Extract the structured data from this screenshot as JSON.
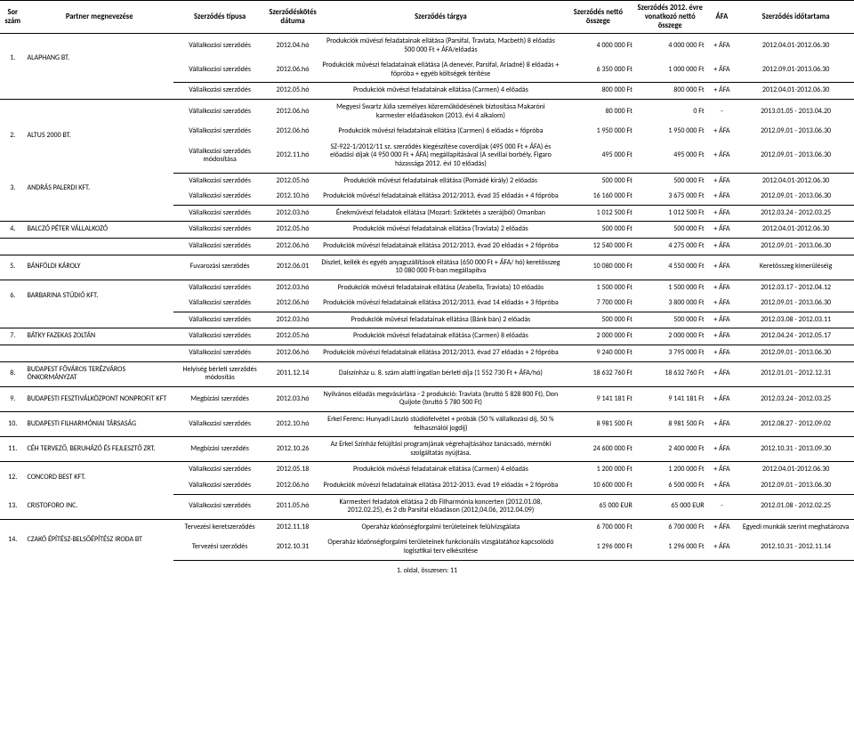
{
  "headers": {
    "sor": "Sor\nszám",
    "partner": "Partner megnevezése",
    "tipus": "Szerződés típusa",
    "datum": "Szerződéskötés\ndátuma",
    "targy": "Szerződés tárgya",
    "netto": "Szerződés nettó\nösszege",
    "evre": "Szerződés 2012.\névre vonatkozó\nnettó összege",
    "afa": "ÁFA",
    "ido": "Szerződés időtartama"
  },
  "footer": "1. oldal, összesen: 11",
  "groups": [
    {
      "sor": "1.",
      "partner": "ALAPHANG BT.",
      "rows": [
        {
          "tipus": "Vállalkozási szerződés",
          "datum": "2012.04.hó",
          "targy": "Produkciók művészi feladatainak ellátása (Parsifal, Traviata, Macbeth) 8 előadás 500 000 Ft + ÁFA/előadás",
          "netto": "4 000 000 Ft",
          "evre": "4 000 000 Ft",
          "afa": "+ ÁFA",
          "ido": "2012.04.01-2012.06.30"
        },
        {
          "tipus": "Vállalkozási szerződés",
          "datum": "2012.06.hó",
          "targy": "Produkciók művészi feladatainak ellátása (A denevér, Parsifal, Ariadné) 8 előadás + főpróba + egyéb költségek térítése",
          "netto": "6 350 000 Ft",
          "evre": "1 000 000 Ft",
          "afa": "+ ÁFA",
          "ido": "2012.09.01-2013.06.30"
        }
      ]
    },
    {
      "rows": [
        {
          "tipus": "Vállalkozási szerződés",
          "datum": "2012.05.hó",
          "targy": "Produkciók művészi feladatainak ellátása (Carmen) 4 előadás",
          "netto": "800 000 Ft",
          "evre": "800 000 Ft",
          "afa": "+ ÁFA",
          "ido": "2012.04.01-2012.06.30"
        }
      ]
    },
    {
      "sor": "2.",
      "partner": "ALTUS 2000 BT.",
      "rows": [
        {
          "tipus": "Vállalkozási szerződés",
          "datum": "2012.06.hó",
          "targy": "Megyesi Swartz Júlia személyes közreműködésének biztosítása Makaróni karmester előadásokon (2013. évi 4 alkalom)",
          "netto": "80 000 Ft",
          "evre": "0 Ft",
          "afa": "-",
          "ido": "2013.01.05 - 2013.04.20"
        },
        {
          "tipus": "Vállalkozási szerződés",
          "datum": "2012.06.hó",
          "targy": "Produkciók művészi feladatainak ellátása (Carmen) 6 előadás + főpróba",
          "netto": "1 950 000 Ft",
          "evre": "1 950 000 Ft",
          "afa": "+ ÁFA",
          "ido": "2012.09.01 - 2013.06.30"
        },
        {
          "tipus": "Vállalkozási szerződés módosítása",
          "datum": "2012.11.hó",
          "targy": "SZ-922-1/2012/11 sz. szerződés kiegészítése coverdíjak (495 000 Ft + ÁFA) és előadási díjak (4 950 000 Ft + ÁFA) megállapításával (A sevillai borbély, Figaro házassága 2012. évi 10 előadás)",
          "netto": "495 000 Ft",
          "evre": "495 000 Ft",
          "afa": "+ ÁFA",
          "ido": "2012.09.01 - 2013.06.30"
        }
      ]
    },
    {
      "sor": "3.",
      "partner": "ANDRÁS PALERDI KFT.",
      "rowspan": 2,
      "thin": true,
      "rows": [
        {
          "tipus": "Vállalkozási szerződés",
          "datum": "2012.05.hó",
          "targy": "Produkciók művészi feladatainak ellátása (Pomádé király) 2 előadás",
          "netto": "500 000 Ft",
          "evre": "500 000 Ft",
          "afa": "+ ÁFA",
          "ido": "2012.04.01-2012.06.30"
        },
        {
          "tipus": "Vállalkozási szerződés",
          "datum": "2012.10.hó",
          "targy": "Produkciók művészi feladatainak ellátása 2012/2013. évad 35 előadás + 4 főpróba",
          "netto": "16 160 000 Ft",
          "evre": "3 675 000 Ft",
          "afa": "+ ÁFA",
          "ido": "2012.09.01 - 2013.06.30"
        }
      ]
    },
    {
      "rows": [
        {
          "tipus": "Vállalkozási szerződés",
          "datum": "2012.03.hó",
          "targy": "Énekművészi feladatok ellátása (Mozart: Szöktetés a szerájból) Omanban",
          "netto": "1 012 500 Ft",
          "evre": "1 012 500 Ft",
          "afa": "+ ÁFA",
          "ido": "2012.03.24 - 2012.03.25"
        }
      ],
      "thin": true
    },
    {
      "sor": "4.",
      "partner": "BALCZÓ PÉTER VÁLLALKOZÓ",
      "rowspan": 1,
      "thin": true,
      "rows": [
        {
          "tipus": "Vállalkozási szerződés",
          "datum": "2012.05.hó",
          "targy": "Produkciók művészi feladatainak ellátása (Traviata) 2 előadás",
          "netto": "500 000 Ft",
          "evre": "500 000 Ft",
          "afa": "+ ÁFA",
          "ido": "2012.04.01-2012.06.30"
        }
      ]
    },
    {
      "thin": true,
      "rows": [
        {
          "tipus": "Vállalkozási szerződés",
          "datum": "2012.06.hó",
          "targy": "Produkciók művészi feladatainak ellátása 2012/2013. évad 20 előadás + 2 főpróba",
          "netto": "12 540 000 Ft",
          "evre": "4 275 000 Ft",
          "afa": "+ ÁFA",
          "ido": "2012.09.01 - 2013.06.30"
        }
      ]
    },
    {
      "sor": "5.",
      "partner": "BÁNFÖLDI KÁROLY",
      "thin": true,
      "rows": [
        {
          "tipus": "Fuvarozási szerződés",
          "datum": "2012.06.01",
          "targy": "Díszlet, kellék és egyéb anyagszállítások ellátása (650 000 Ft + ÁFA/ hó) keretösszeg 10 080 000 Ft-ban megállapítva",
          "netto": "10 080 000 Ft",
          "evre": "4 550 000 Ft",
          "afa": "+ ÁFA",
          "ido": "Keretösszeg kimerüléséig"
        }
      ]
    },
    {
      "sor": "6.",
      "partner": "BARBARINA STÚDIÓ KFT.",
      "rowspan": 2,
      "thin": true,
      "rows": [
        {
          "tipus": "Vállalkozási szerződés",
          "datum": "2012.03.hó",
          "targy": "Produkciók művészi feladatainak ellátása (Arabella, Traviata) 10 előadás",
          "netto": "1 500 000 Ft",
          "evre": "1 500 000 Ft",
          "afa": "+ ÁFA",
          "ido": "2012.03.17 - 2012.04.12"
        },
        {
          "tipus": "Vállalkozási szerződés",
          "datum": "2012.06.hó",
          "targy": "Produkciók művészi feladatainak ellátása 2012/2013. évad 14 előadás + 3 főpróba",
          "netto": "7 700 000 Ft",
          "evre": "3 800 000 Ft",
          "afa": "+ ÁFA",
          "ido": "2012.09.01 - 2013.06.30"
        }
      ]
    },
    {
      "thin": true,
      "rows": [
        {
          "tipus": "Vállalkozási szerződés",
          "datum": "2012.03.hó",
          "targy": "Produkciók művészi feladatainak ellátása (Bánk bán) 2 előadás",
          "netto": "500 000 Ft",
          "evre": "500 000 Ft",
          "afa": "+ ÁFA",
          "ido": "2012.03.08 - 2012.03.11"
        }
      ]
    },
    {
      "sor": "7.",
      "partner": "BÁTKY FAZEKAS ZOLTÁN",
      "rowspan": 1,
      "thin": true,
      "rows": [
        {
          "tipus": "Vállalkozási szerződés",
          "datum": "2012.05.hó",
          "targy": "Produkciók művészi feladatainak ellátása (Carmen) 8 előadás",
          "netto": "2 000 000 Ft",
          "evre": "2 000 000 Ft",
          "afa": "+ ÁFA",
          "ido": "2012.04.24 - 2012.05.17"
        }
      ]
    },
    {
      "thin": true,
      "rows": [
        {
          "tipus": "Vállalkozási szerződés",
          "datum": "2012.06.hó",
          "targy": "Produkciók művészi feladatainak ellátása 2012/2013. évad 27 előadás + 2 főpróba",
          "netto": "9 240 000 Ft",
          "evre": "3 795 000 Ft",
          "afa": "+ ÁFA",
          "ido": "2012.09.01 - 2013.06.30"
        }
      ]
    },
    {
      "sor": "8.",
      "partner": "BUDAPEST FŐVÁROS TERÉZVÁROS ÖNKORMÁNYZAT",
      "thin": true,
      "rows": [
        {
          "tipus": "Helyiség bérleti szerződés módosítás",
          "datum": "2011.12.14",
          "targy": "Dalszínház u. 8. szám alatti ingatlan bérleti díja (1 552 730 Ft + ÁFA/hó)",
          "netto": "18 632 760 Ft",
          "evre": "18 632 760 Ft",
          "afa": "+ ÁFA",
          "ido": "2012.01.01 - 2012.12.31"
        }
      ]
    },
    {
      "sor": "9.",
      "partner": "BUDAPESTI FESZTIVÁLKÖZPONT NONPROFIT KFT",
      "thin": true,
      "rows": [
        {
          "tipus": "Megbízási szerződés",
          "datum": "2012.03.hó",
          "targy": "Nyilvános előadás megvásárlása - 2 produkció: Traviata (bruttó 5 828 800 Ft), Don Quijote (bruttó 5 780 500 Ft)",
          "netto": "9 141 181 Ft",
          "evre": "9 141 181 Ft",
          "afa": "+ ÁFA",
          "ido": "2012.03.24 - 2012.03.25"
        }
      ]
    },
    {
      "sor": "10.",
      "partner": "BUDAPESTI FILHARMÓNIAI TÁRSASÁG",
      "thin": true,
      "rows": [
        {
          "tipus": "Vállalkozási szerződés",
          "datum": "2012.10.hó",
          "targy": "Erkel Ferenc: Hunyadi László stúdiófelvétel + próbák (50 % vállalkozási díj, 50 % felhasználói jogdíj)",
          "netto": "8 981 500 Ft",
          "evre": "8 981 500 Ft",
          "afa": "+ ÁFA",
          "ido": "2012.08.27 - 2012.09.02"
        }
      ]
    },
    {
      "sor": "11.",
      "partner": "CÉH TERVEZŐ, BERUHÁZÓ ÉS FEJLESZTŐ ZRT.",
      "thin": true,
      "rows": [
        {
          "tipus": "Megbízási szerződés",
          "datum": "2012.10.26",
          "targy": "Az Erkel Színház felújítási programjának végrehajtásához tanácsadó, mérnöki szolgáltatás nyújtása.",
          "netto": "24 600 000 Ft",
          "evre": "2 400 000 Ft",
          "afa": "+ ÁFA",
          "ido": "2012.10.31 - 2013.09.30"
        }
      ]
    },
    {
      "sor": "12.",
      "partner": "CONCORD BEST KFT.",
      "rowspan": 2,
      "thin": true,
      "rows": [
        {
          "tipus": "Vállalkozási szerződés",
          "datum": "2012.05.18",
          "targy": "Produkciók művészi feladatainak ellátása (Carmen) 4 előadás",
          "netto": "1 200 000 Ft",
          "evre": "1 200 000 Ft",
          "afa": "+ ÁFA",
          "ido": "2012.04.01-2012.06.30"
        },
        {
          "tipus": "Vállalkozási szerződés",
          "datum": "2012.06.hó",
          "targy": "Produkciók művészi feladatainak ellátása 2012-2013. évad 19 előadás + 2 főpróba",
          "netto": "10 600 000 Ft",
          "evre": "6 500 000 Ft",
          "afa": "+ ÁFA",
          "ido": "2012.09.01 - 2013.06.30"
        }
      ]
    },
    {
      "sor": "13.",
      "partner": "CRISTOFORO INC.",
      "thin": true,
      "rows": [
        {
          "tipus": "Vállalkozási szerződés",
          "datum": "2011.05.hó",
          "targy": "Karmesteri feladatok ellátása 2 db Filharmónia koncerten (2012.01.08, 2012.02.25), és 2 db Parsifal előadáson (2012,04.06, 2012.04.09)",
          "netto": "65 000 EUR",
          "evre": "65 000 EUR",
          "afa": "-",
          "ido": "2012.01.08 - 2012.02.25"
        }
      ]
    },
    {
      "sor": "14.",
      "partner": "CZAKÓ ÉPÍTÉSZ-BELSŐÉPÍTÉSZ IRODA BT",
      "rowspan": 2,
      "thin": true,
      "rows": [
        {
          "tipus": "Tervezési keretszerződés",
          "datum": "2012.11.18",
          "targy": "Operaház közönségforgalmi területeinek felülvizsgálata",
          "netto": "6 700 000 Ft",
          "evre": "6 700 000 Ft",
          "afa": "+ ÁFA",
          "ido": "Egyedi munkák szerint meghatározva"
        },
        {
          "tipus": "Tervezési szerződés",
          "datum": "2012.10.31",
          "targy": "Operaház közönségforgalmi területeinek funkcionális vizsgálatához kapcsolódó logisztikai terv elkészítése",
          "netto": "1 296 000 Ft",
          "evre": "1 296 000 Ft",
          "afa": "+ ÁFA",
          "ido": "2012.10.31 - 2012.11.14"
        }
      ]
    }
  ]
}
